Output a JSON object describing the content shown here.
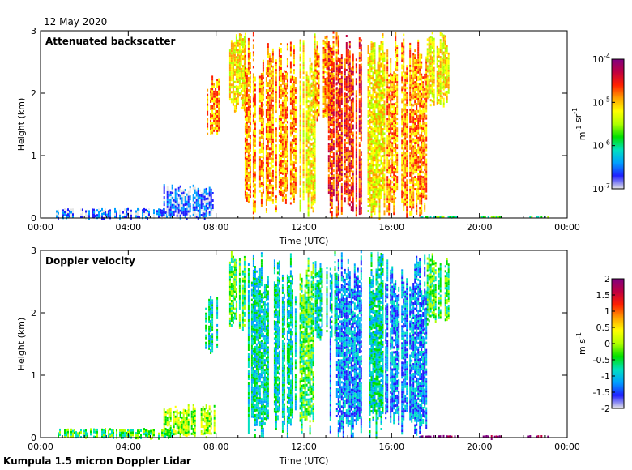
{
  "header": {
    "date": "12 May 2020"
  },
  "footer": {
    "title": "Kumpula 1.5 micron Doppler Lidar"
  },
  "colors": {
    "scale": [
      "#e6e6e6",
      "#1f1fff",
      "#00a0ff",
      "#00e0c0",
      "#00e000",
      "#b0ff00",
      "#ffff00",
      "#ffa000",
      "#ff2000",
      "#c00040",
      "#800080"
    ],
    "frame": "#000000"
  },
  "chart_data": [
    {
      "type": "heatmap",
      "title": "Attenuated backscatter",
      "xlabel": "Time (UTC)",
      "ylabel": "Height (km)",
      "x_ticks": [
        "00:00",
        "04:00",
        "08:00",
        "12:00",
        "16:00",
        "20:00",
        "00:00"
      ],
      "xlim": [
        0,
        24
      ],
      "ylim": [
        0,
        3
      ],
      "y_ticks": [
        "0",
        "1",
        "2",
        "3"
      ],
      "grid": false,
      "colorbar": {
        "label": "m-1 sr-1",
        "scale": "log",
        "range": [
          1e-07,
          0.0001
        ],
        "ticks": [
          {
            "base": "10",
            "exp": "-4"
          },
          {
            "base": "10",
            "exp": "-5"
          },
          {
            "base": "10",
            "exp": "-6"
          },
          {
            "base": "10",
            "exp": "-7"
          }
        ]
      },
      "features": [
        {
          "t0": 0.7,
          "t1": 6.0,
          "h0": 0.0,
          "h1": 0.16,
          "level": 1
        },
        {
          "t0": 5.6,
          "t1": 7.9,
          "h0": 0.0,
          "h1": 0.55,
          "level": 1
        },
        {
          "t0": 7.5,
          "t1": 8.1,
          "h0": 1.3,
          "h1": 2.3,
          "level": 7
        },
        {
          "t0": 8.6,
          "t1": 9.3,
          "h0": 1.7,
          "h1": 3.0,
          "level": 6
        },
        {
          "t0": 9.3,
          "t1": 11.6,
          "h0": 0.0,
          "h1": 3.0,
          "level": 7
        },
        {
          "t0": 11.8,
          "t1": 12.5,
          "h0": 0.0,
          "h1": 3.0,
          "level": 6
        },
        {
          "t0": 12.5,
          "t1": 13.5,
          "h0": 1.5,
          "h1": 3.0,
          "level": 7
        },
        {
          "t0": 13.1,
          "t1": 14.6,
          "h0": 0.0,
          "h1": 3.0,
          "level": 8
        },
        {
          "t0": 14.9,
          "t1": 15.7,
          "h0": 0.0,
          "h1": 3.0,
          "level": 6
        },
        {
          "t0": 15.7,
          "t1": 17.6,
          "h0": 0.0,
          "h1": 3.0,
          "level": 7
        },
        {
          "t0": 17.6,
          "t1": 18.6,
          "h0": 1.8,
          "h1": 3.0,
          "level": 6
        },
        {
          "t0": 17.3,
          "t1": 19.0,
          "h0": 0.0,
          "h1": 0.04,
          "level": 4
        },
        {
          "t0": 20.0,
          "t1": 21.0,
          "h0": 0.0,
          "h1": 0.04,
          "level": 4
        },
        {
          "t0": 22.2,
          "t1": 23.1,
          "h0": 0.0,
          "h1": 0.04,
          "level": 4
        }
      ]
    },
    {
      "type": "heatmap",
      "title": "Doppler velocity",
      "xlabel": "Time (UTC)",
      "ylabel": "Height (km)",
      "x_ticks": [
        "00:00",
        "04:00",
        "08:00",
        "12:00",
        "16:00",
        "20:00",
        "00:00"
      ],
      "xlim": [
        0,
        24
      ],
      "ylim": [
        0,
        3
      ],
      "y_ticks": [
        "0",
        "1",
        "2",
        "3"
      ],
      "grid": false,
      "colorbar": {
        "label": "m s-1",
        "scale": "linear",
        "range": [
          -2,
          2
        ],
        "ticks": [
          "2",
          "1.5",
          "1",
          "0.5",
          "0",
          "-0.5",
          "-1",
          "-1.5",
          "-2"
        ]
      },
      "features": [
        {
          "t0": 0.7,
          "t1": 6.0,
          "h0": 0.0,
          "h1": 0.16,
          "level": 4
        },
        {
          "t0": 5.6,
          "t1": 7.9,
          "h0": 0.0,
          "h1": 0.55,
          "level": 5
        },
        {
          "t0": 7.5,
          "t1": 8.1,
          "h0": 1.3,
          "h1": 2.3,
          "level": 3
        },
        {
          "t0": 8.6,
          "t1": 9.3,
          "h0": 1.7,
          "h1": 3.0,
          "level": 4
        },
        {
          "t0": 9.3,
          "t1": 11.6,
          "h0": 0.0,
          "h1": 3.0,
          "level": 3
        },
        {
          "t0": 11.8,
          "t1": 12.5,
          "h0": 0.0,
          "h1": 3.0,
          "level": 4
        },
        {
          "t0": 12.5,
          "t1": 13.5,
          "h0": 1.5,
          "h1": 3.0,
          "level": 3
        },
        {
          "t0": 13.1,
          "t1": 14.6,
          "h0": 0.0,
          "h1": 3.0,
          "level": 2
        },
        {
          "t0": 14.9,
          "t1": 15.7,
          "h0": 0.0,
          "h1": 3.0,
          "level": 3
        },
        {
          "t0": 15.7,
          "t1": 17.6,
          "h0": 0.0,
          "h1": 3.0,
          "level": 2
        },
        {
          "t0": 17.6,
          "t1": 18.6,
          "h0": 1.8,
          "h1": 3.0,
          "level": 4
        },
        {
          "t0": 17.3,
          "t1": 19.0,
          "h0": 0.0,
          "h1": 0.04,
          "level": 10
        },
        {
          "t0": 20.0,
          "t1": 21.0,
          "h0": 0.0,
          "h1": 0.04,
          "level": 10
        },
        {
          "t0": 22.2,
          "t1": 23.1,
          "h0": 0.0,
          "h1": 0.04,
          "level": 10
        }
      ]
    }
  ]
}
